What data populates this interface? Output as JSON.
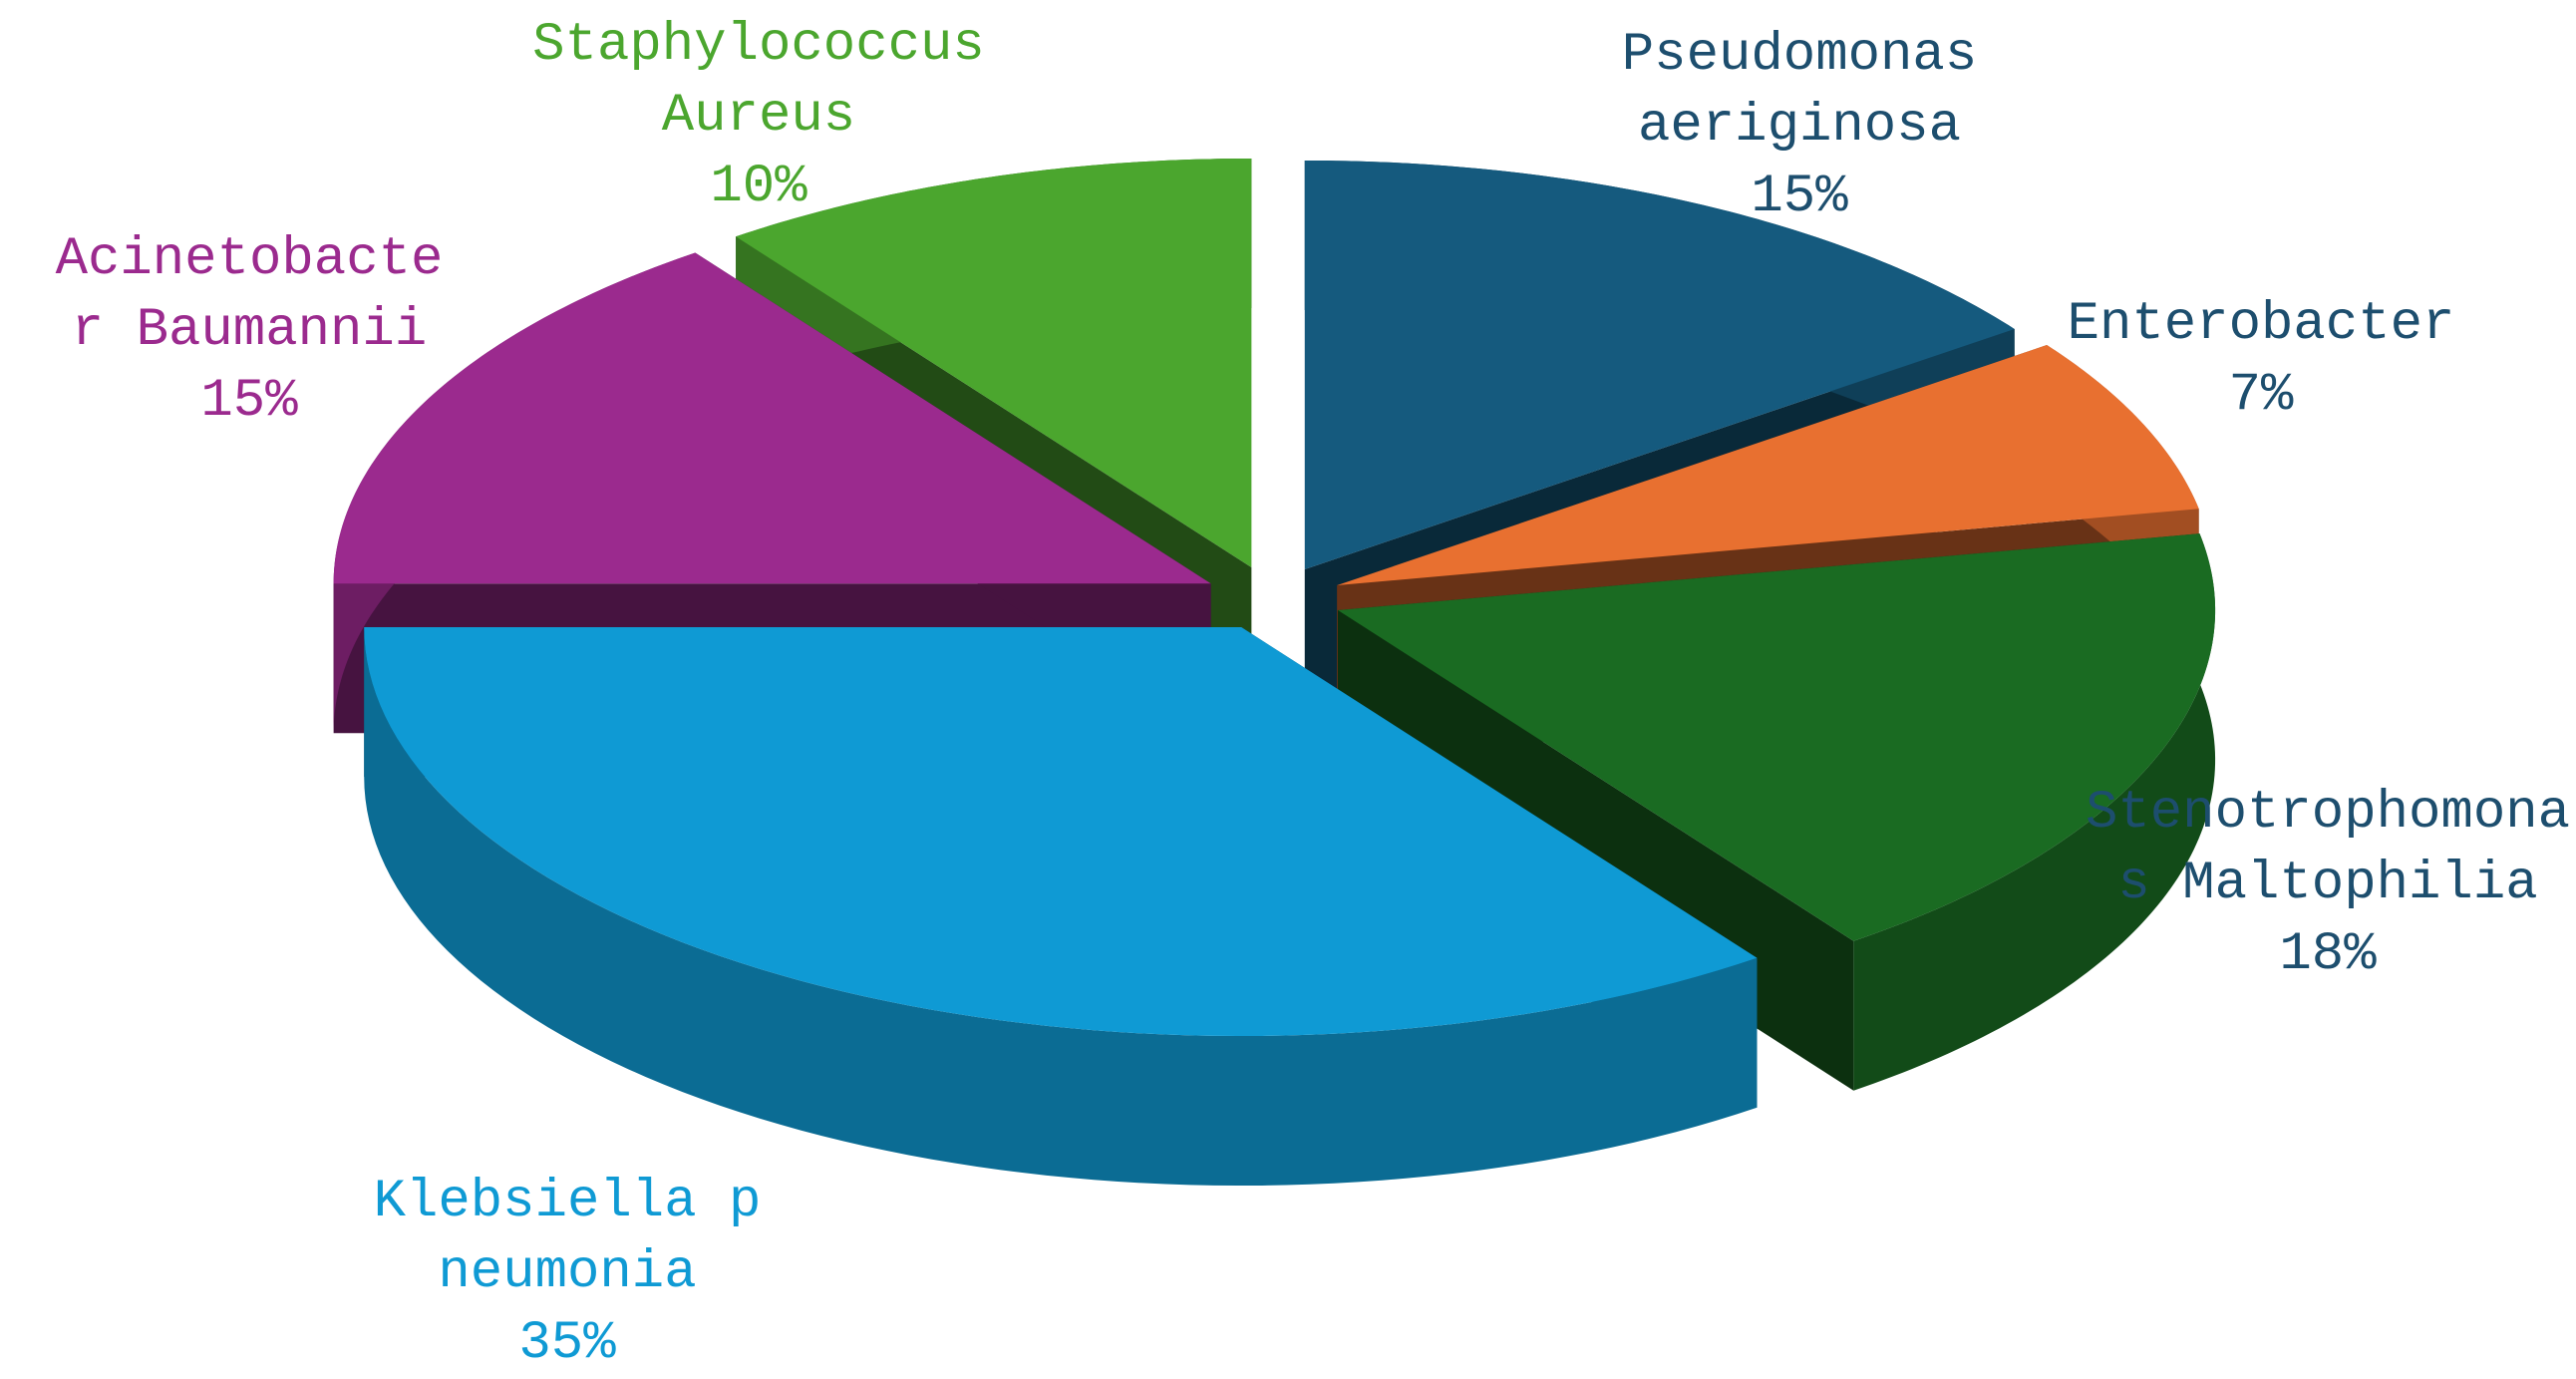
{
  "chart_data": {
    "type": "pie",
    "categories": [
      "Pseudomonas aeriginosa",
      "Enterobacter",
      "Stenotrophomonas Maltophilia",
      "Klebsiella pneumonia",
      "Acinetobacter Baumannii",
      "Staphylococcus Aureus"
    ],
    "values": [
      15,
      7,
      18,
      35,
      15,
      10
    ],
    "value_labels": [
      "15%",
      "7%",
      "18%",
      "35%",
      "15%",
      "10%"
    ],
    "colors": [
      "#155a7e",
      "#e87030",
      "#1a6b22",
      "#0f9ad4",
      "#9b2a8e",
      "#4ba62e"
    ]
  }
}
